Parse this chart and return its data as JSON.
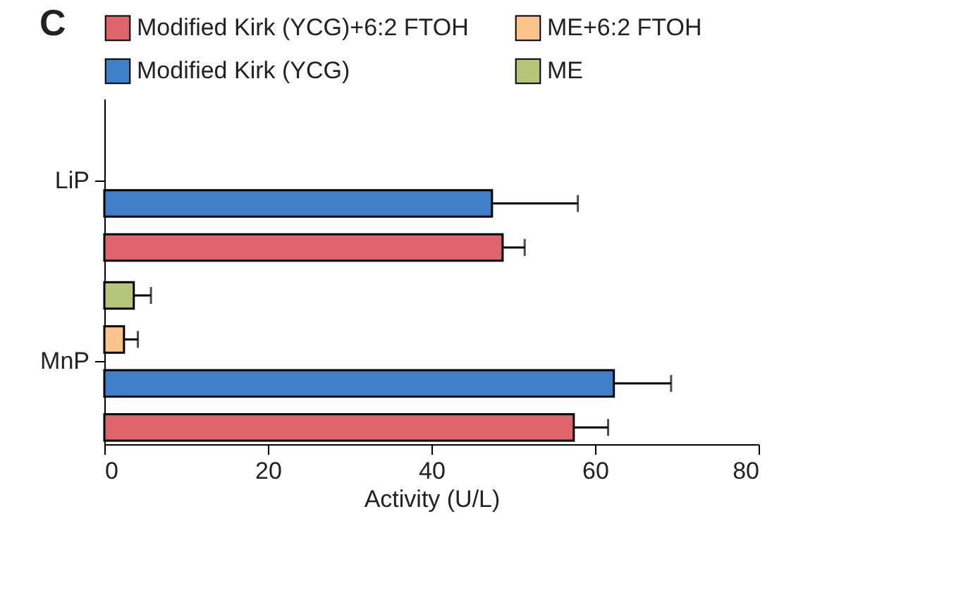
{
  "chart_data": {
    "type": "bar",
    "orientation": "horizontal",
    "title": "C",
    "xlabel": "Activity (U/L)",
    "categories": [
      "LiP",
      "MnP"
    ],
    "series": [
      {
        "name": "Modified Kirk (YCG)+6:2 FTOH",
        "color": "#e0656b",
        "values": [
          48.7,
          57.4
        ],
        "errors": [
          2.7,
          4.2
        ]
      },
      {
        "name": "Modified Kirk (YCG)",
        "color": "#3f7ec8",
        "values": [
          47.4,
          62.3
        ],
        "errors": [
          10.5,
          7
        ]
      },
      {
        "name": "ME+6:2 FTOH",
        "color": "#fcc38a",
        "values": [
          null,
          2.4
        ],
        "errors": [
          null,
          1.7
        ]
      },
      {
        "name": "ME",
        "color": "#b4c67a",
        "values": [
          null,
          3.6
        ],
        "errors": [
          null,
          2.1
        ]
      }
    ],
    "xlim": [
      0,
      80
    ],
    "xticks": [
      0,
      20,
      40,
      60,
      80
    ],
    "grid": false,
    "legend": "top"
  }
}
